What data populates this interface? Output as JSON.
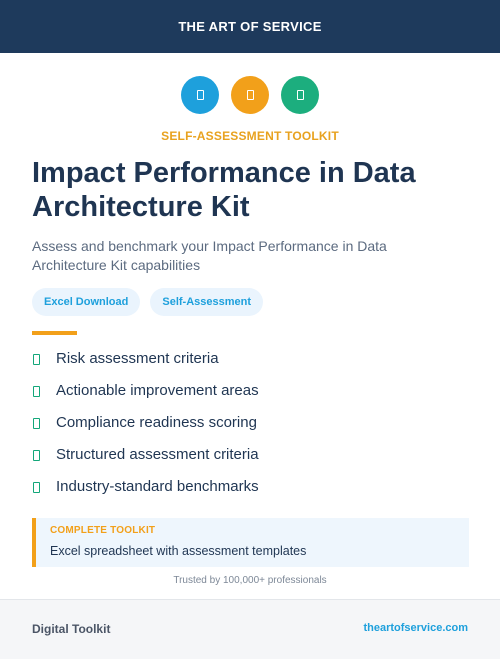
{
  "header": {
    "brand": "THE ART OF SERVICE",
    "background": "#1e3a5c"
  },
  "icons": [
    {
      "name": "document-icon",
      "color": "#1ea0dc"
    },
    {
      "name": "document-icon",
      "color": "#f2a01a"
    },
    {
      "name": "document-icon",
      "color": "#1cae7e"
    }
  ],
  "kicker": {
    "text": "SELF-ASSESSMENT TOOLKIT",
    "color": "#e8a21f"
  },
  "title": "Impact Performance in Data Architecture Kit",
  "subtitle": "Assess and benchmark your Impact Performance in Data Architecture Kit capabilities",
  "tags": [
    "Excel Download",
    "Self-Assessment"
  ],
  "accent_color": "#f2a01a",
  "features": [
    "Risk assessment criteria",
    "Actionable improvement areas",
    "Compliance readiness scoring",
    "Structured assessment criteria",
    "Industry-standard benchmarks"
  ],
  "callout": {
    "label": "COMPLETE TOOLKIT",
    "description": "Excel spreadsheet with assessment templates",
    "accent": "#f2a01a"
  },
  "trust_text": "Trusted by 100,000+ professionals",
  "footer": {
    "left": "Digital Toolkit",
    "right": "theartofservice.com",
    "link_color": "#1ea0dc"
  }
}
